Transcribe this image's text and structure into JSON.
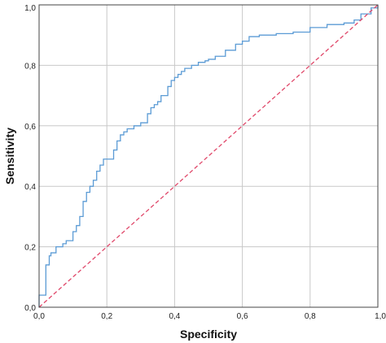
{
  "chart_data": {
    "type": "line",
    "title": "",
    "xlabel": "Specificity",
    "ylabel": "Sensitivity",
    "xlim": [
      0,
      1
    ],
    "ylim": [
      0,
      1
    ],
    "grid": true,
    "x_ticks": [
      "0,0",
      "0,2",
      "0,4",
      "0,6",
      "0,8",
      "1,0"
    ],
    "y_ticks": [
      "0,0",
      "0,2",
      "0,4",
      "0,6",
      "0,8",
      "1,0"
    ],
    "series": [
      {
        "style": "step",
        "color": "#5b9bd5",
        "x": [
          0.0,
          0.0,
          0.02,
          0.02,
          0.03,
          0.035,
          0.05,
          0.07,
          0.08,
          0.1,
          0.11,
          0.12,
          0.13,
          0.14,
          0.15,
          0.16,
          0.17,
          0.18,
          0.19,
          0.21,
          0.22,
          0.23,
          0.24,
          0.25,
          0.26,
          0.28,
          0.3,
          0.32,
          0.33,
          0.34,
          0.35,
          0.36,
          0.38,
          0.39,
          0.4,
          0.41,
          0.42,
          0.43,
          0.45,
          0.47,
          0.49,
          0.5,
          0.52,
          0.55,
          0.58,
          0.6,
          0.62,
          0.65,
          0.7,
          0.75,
          0.8,
          0.85,
          0.9,
          0.93,
          0.95,
          0.98,
          1.0
        ],
        "y": [
          0.0,
          0.04,
          0.04,
          0.14,
          0.17,
          0.18,
          0.2,
          0.21,
          0.22,
          0.25,
          0.27,
          0.3,
          0.35,
          0.38,
          0.4,
          0.42,
          0.45,
          0.47,
          0.49,
          0.49,
          0.52,
          0.55,
          0.57,
          0.58,
          0.59,
          0.6,
          0.61,
          0.64,
          0.66,
          0.67,
          0.68,
          0.7,
          0.73,
          0.75,
          0.76,
          0.77,
          0.78,
          0.79,
          0.8,
          0.81,
          0.815,
          0.82,
          0.83,
          0.85,
          0.87,
          0.88,
          0.895,
          0.9,
          0.905,
          0.91,
          0.925,
          0.935,
          0.94,
          0.95,
          0.97,
          0.99,
          1.0
        ]
      },
      {
        "style": "dashed",
        "color": "#e0486a",
        "x": [
          0,
          1
        ],
        "y": [
          0,
          1
        ]
      }
    ]
  }
}
